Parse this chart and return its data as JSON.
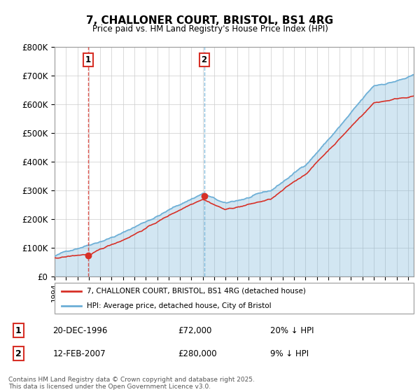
{
  "title": "7, CHALLONER COURT, BRISTOL, BS1 4RG",
  "subtitle": "Price paid vs. HM Land Registry's House Price Index (HPI)",
  "ylim": [
    0,
    800000
  ],
  "yticks": [
    0,
    100000,
    200000,
    300000,
    400000,
    500000,
    600000,
    700000,
    800000
  ],
  "ytick_labels": [
    "£0",
    "£100K",
    "£200K",
    "£300K",
    "£400K",
    "£500K",
    "£600K",
    "£700K",
    "£800K"
  ],
  "hpi_color": "#6baed6",
  "price_color": "#d73027",
  "marker_color": "#d73027",
  "dashed_line_color_1": "#d73027",
  "dashed_line_color_2": "#6baed6",
  "purchase1_date": 1996.96,
  "purchase1_price": 72000,
  "purchase1_label": "1",
  "purchase2_date": 2007.12,
  "purchase2_price": 280000,
  "purchase2_label": "2",
  "legend_entry1": "7, CHALLONER COURT, BRISTOL, BS1 4RG (detached house)",
  "legend_entry2": "HPI: Average price, detached house, City of Bristol",
  "table_row1": [
    "1",
    "20-DEC-1996",
    "£72,000",
    "20% ↓ HPI"
  ],
  "table_row2": [
    "2",
    "12-FEB-2007",
    "£280,000",
    "9% ↓ HPI"
  ],
  "footer": "Contains HM Land Registry data © Crown copyright and database right 2025.\nThis data is licensed under the Open Government Licence v3.0.",
  "grid_color": "#cccccc",
  "xmin": 1994,
  "xmax": 2025.5
}
